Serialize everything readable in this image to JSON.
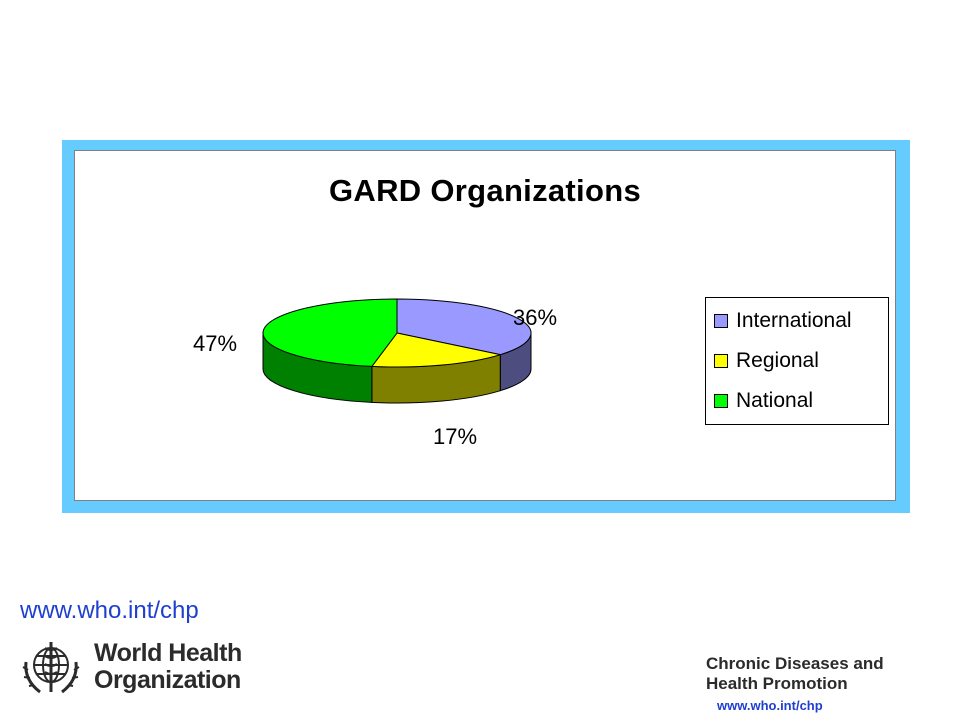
{
  "slide": {
    "top_link": "www.who.int/chp",
    "logo": {
      "line1": "World Health",
      "line2": "Organization"
    },
    "program": {
      "line1": "Chronic Diseases and",
      "line2": "Health Promotion"
    },
    "footer_link": "www.who.int/chp"
  },
  "colors": {
    "frame": "#66ccff",
    "link": "#1f3fd0"
  },
  "chart_data": {
    "type": "pie",
    "style": "3d",
    "title": "GARD Organizations",
    "legend_position": "right",
    "categories": [
      "International",
      "Regional",
      "National"
    ],
    "values": [
      36,
      17,
      47
    ],
    "data_labels": [
      "36%",
      "17%",
      "47%"
    ],
    "colors": [
      "#9999ff",
      "#ffff00",
      "#00ff00"
    ],
    "side_colors": [
      "#4d4d80",
      "#808000",
      "#008000"
    ]
  }
}
